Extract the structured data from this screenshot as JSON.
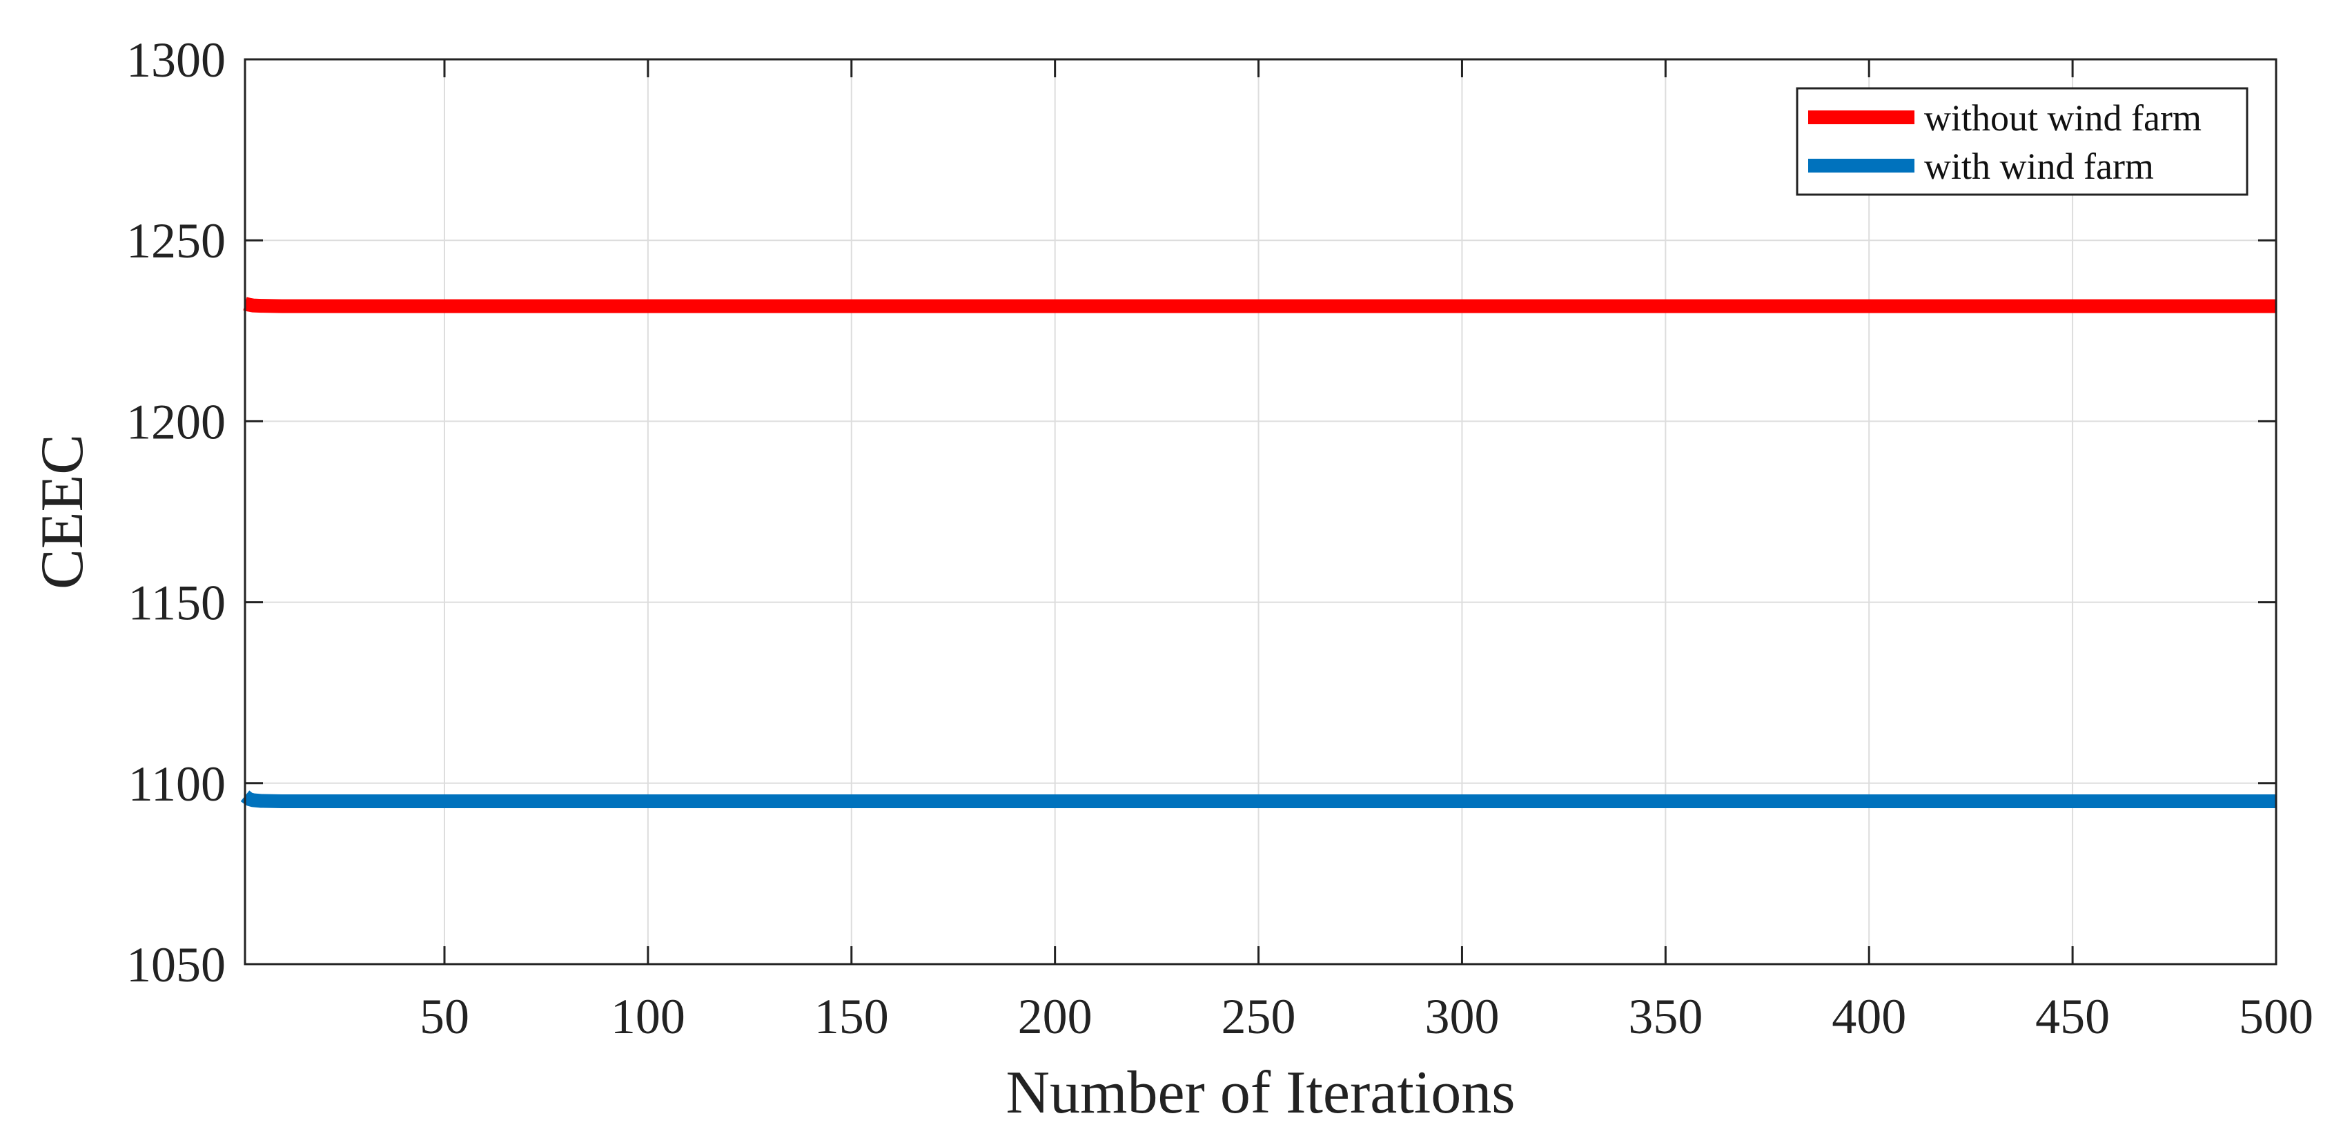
{
  "chart_data": {
    "type": "line",
    "title": "",
    "xlabel": "Number of Iterations",
    "ylabel": "CEEC",
    "xlim": [
      1,
      500
    ],
    "ylim": [
      1050,
      1300
    ],
    "xticks": [
      50,
      100,
      150,
      200,
      250,
      300,
      350,
      400,
      450,
      500
    ],
    "yticks": [
      1050,
      1100,
      1150,
      1200,
      1250,
      1300
    ],
    "grid": true,
    "legend_position": "top-right",
    "series": [
      {
        "name": "without wind farm",
        "color": "#ff0000",
        "x": [
          1,
          2,
          3,
          5,
          10,
          20,
          500
        ],
        "y": [
          1232.5,
          1232.2,
          1232.0,
          1231.9,
          1231.8,
          1231.8,
          1231.8
        ]
      },
      {
        "name": "with wind farm",
        "color": "#0072bd",
        "x": [
          1,
          2,
          3,
          5,
          10,
          20,
          500
        ],
        "y": [
          1096.5,
          1095.6,
          1095.3,
          1095.1,
          1095.0,
          1095.0,
          1095.0
        ]
      }
    ]
  }
}
